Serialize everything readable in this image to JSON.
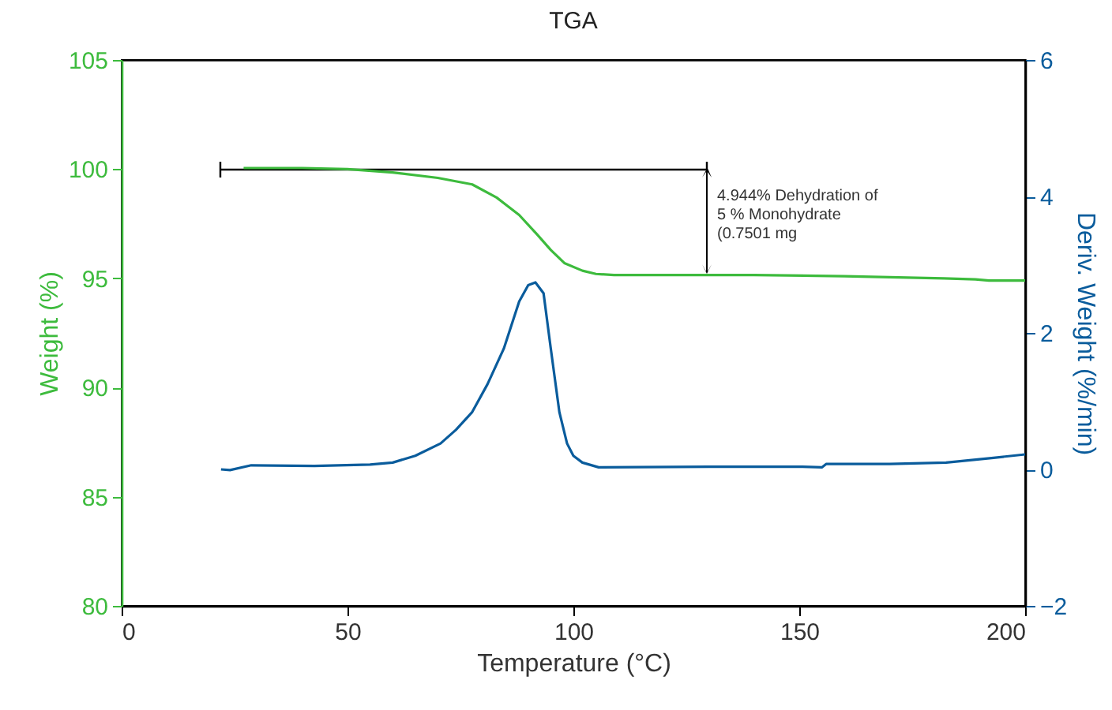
{
  "chart_data": {
    "type": "line",
    "title": "TGA",
    "xlabel": "Temperature (°C)",
    "ylabel": "Weight (%)",
    "y2label": "Deriv. Weight (%/min)",
    "xlim": [
      0,
      200
    ],
    "xticks": [
      0,
      50,
      100,
      150,
      200
    ],
    "ylim": [
      80,
      105
    ],
    "yticks": [
      80,
      85,
      90,
      95,
      100,
      105
    ],
    "y2lim": [
      -2,
      6
    ],
    "y2ticks": [
      -2,
      0,
      2,
      4,
      6
    ],
    "grid": false,
    "annotations": [
      "4.944% Dehydration of\n5 % Monohydrate\n(0.7501 mg"
    ],
    "series": [
      {
        "color": "#3dbb3d",
        "axis": "y",
        "x": [
          27,
          40,
          50,
          60,
          70,
          77.6,
          83,
          88,
          92,
          95,
          98,
          102,
          105,
          109,
          120,
          140,
          160,
          182,
          189,
          192,
          200
        ],
        "values": [
          100.05,
          100.05,
          100,
          99.85,
          99.6,
          99.3,
          98.7,
          97.9,
          97,
          96.3,
          95.7,
          95.35,
          95.2,
          95.15,
          95.15,
          95.15,
          95.1,
          95,
          94.95,
          94.9,
          94.9
        ]
      },
      {
        "color": "#0a5c9c",
        "axis": "y2",
        "x": [
          22,
          24,
          28.7,
          42.7,
          55,
          60,
          65,
          70.6,
          74,
          77.6,
          81,
          84.6,
          88,
          90,
          91.6,
          93.4,
          95,
          96.9,
          98.6,
          100,
          102,
          105.6,
          130,
          150,
          155,
          156,
          170,
          182.5,
          193,
          200
        ],
        "values": [
          0,
          -0.01,
          0.06,
          0.05,
          0.07,
          0.1,
          0.2,
          0.38,
          0.58,
          0.84,
          1.25,
          1.77,
          2.46,
          2.7,
          2.74,
          2.58,
          1.77,
          0.84,
          0.38,
          0.2,
          0.1,
          0.03,
          0.04,
          0.04,
          0.03,
          0.08,
          0.08,
          0.1,
          0.17,
          0.22
        ]
      }
    ]
  }
}
